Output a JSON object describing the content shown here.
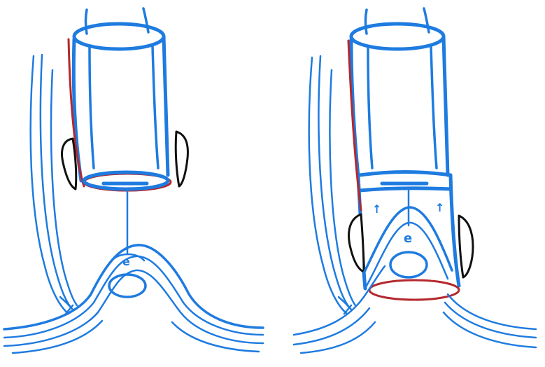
{
  "colors": {
    "stroke_blue": "#1e7be0",
    "stroke_red": "#b4282e",
    "stroke_black": "#111111",
    "background": "#ffffff"
  },
  "left_panel": {
    "papilla_label": "e"
  },
  "right_panel": {
    "papilla_label": "e",
    "arrow_left": "↑",
    "arrow_right": "↑"
  }
}
